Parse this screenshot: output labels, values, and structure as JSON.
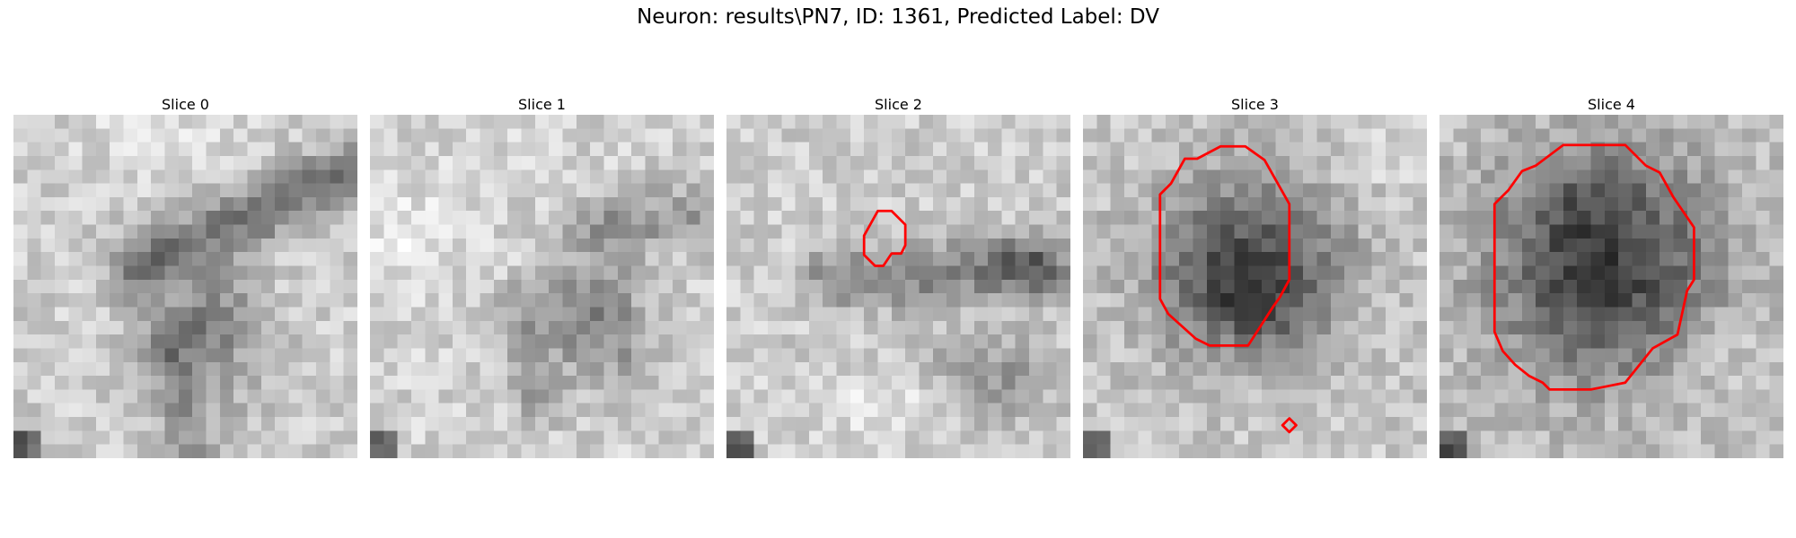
{
  "figure": {
    "title": "Neuron: results\\PN7, ID: 1361, Predicted Label: DV",
    "outline_color": "#ff0000"
  },
  "panels": [
    {
      "title": "Slice 0"
    },
    {
      "title": "Slice 1"
    },
    {
      "title": "Slice 2"
    },
    {
      "title": "Slice 3"
    },
    {
      "title": "Slice 4"
    }
  ]
}
